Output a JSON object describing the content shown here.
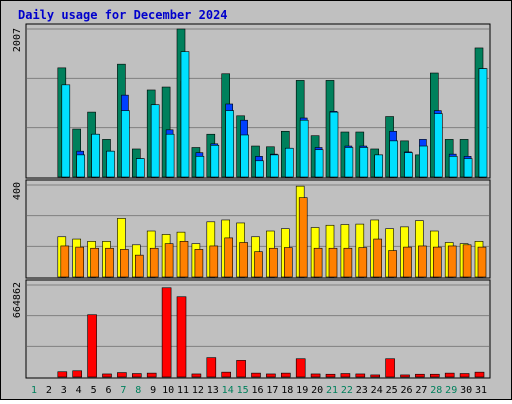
{
  "title": "Daily usage for December 2024",
  "colors": {
    "title": "#0000cc",
    "frame_bg": "#c0c0c0",
    "plot_bg": "#c0c0c0",
    "grid": "#808080",
    "hits": "#00805c",
    "files": "#0040ff",
    "pages": "#00e0ff",
    "visits": "#ffff00",
    "sites": "#ff8000",
    "kbytes": "#ff0000",
    "weekday_label": "#000000",
    "weekend_label": "#00805c"
  },
  "chart_data": [
    {
      "type": "bar",
      "panel": "hits-files-pages",
      "axis_max_label": "2007",
      "ylim": [
        0,
        2007
      ],
      "grid": true,
      "categories": [
        "1",
        "2",
        "3",
        "4",
        "5",
        "6",
        "7",
        "8",
        "9",
        "10",
        "11",
        "12",
        "13",
        "14",
        "15",
        "16",
        "17",
        "18",
        "19",
        "20",
        "21",
        "22",
        "23",
        "24",
        "25",
        "26",
        "27",
        "28",
        "29",
        "30",
        "31"
      ],
      "series": [
        {
          "values": [
            0,
            0,
            1480,
            650,
            880,
            510,
            1530,
            380,
            1180,
            1220,
            2007,
            400,
            580,
            1400,
            830,
            420,
            410,
            620,
            1310,
            560,
            1310,
            610,
            610,
            380,
            820,
            490,
            300,
            1410,
            510,
            510,
            1750
          ],
          "role": "hits"
        },
        {
          "values": [
            0,
            0,
            1180,
            350,
            580,
            350,
            1110,
            250,
            980,
            640,
            1300,
            330,
            450,
            990,
            770,
            280,
            310,
            390,
            800,
            400,
            890,
            420,
            420,
            300,
            620,
            340,
            510,
            900,
            310,
            280,
            1470
          ],
          "role": "files"
        },
        {
          "values": [
            0,
            0,
            1250,
            300,
            580,
            350,
            900,
            250,
            980,
            580,
            1700,
            280,
            430,
            900,
            570,
            220,
            300,
            390,
            770,
            370,
            880,
            400,
            400,
            300,
            490,
            330,
            420,
            860,
            280,
            250,
            1470
          ],
          "role": "pages"
        }
      ]
    },
    {
      "type": "bar",
      "panel": "visits-sites",
      "axis_max_label": "400",
      "ylim": [
        0,
        400
      ],
      "grid": true,
      "categories": [
        "1",
        "2",
        "3",
        "4",
        "5",
        "6",
        "7",
        "8",
        "9",
        "10",
        "11",
        "12",
        "13",
        "14",
        "15",
        "16",
        "17",
        "18",
        "19",
        "20",
        "21",
        "22",
        "23",
        "24",
        "25",
        "26",
        "27",
        "28",
        "29",
        "30",
        "31"
      ],
      "series": [
        {
          "values": [
            0,
            0,
            175,
            165,
            155,
            155,
            255,
            140,
            200,
            185,
            195,
            145,
            240,
            248,
            235,
            175,
            200,
            210,
            395,
            215,
            225,
            228,
            230,
            248,
            210,
            218,
            245,
            200,
            150,
            145,
            155
          ],
          "role": "visits"
        },
        {
          "values": [
            0,
            0,
            135,
            130,
            125,
            125,
            120,
            95,
            125,
            145,
            155,
            120,
            135,
            170,
            150,
            110,
            125,
            128,
            345,
            125,
            125,
            125,
            128,
            165,
            115,
            130,
            135,
            130,
            135,
            140,
            130
          ],
          "role": "sites"
        }
      ]
    },
    {
      "type": "bar",
      "panel": "kbytes",
      "axis_max_label": "664862",
      "ylim": [
        0,
        664862
      ],
      "grid": true,
      "categories": [
        "1",
        "2",
        "3",
        "4",
        "5",
        "6",
        "7",
        "8",
        "9",
        "10",
        "11",
        "12",
        "13",
        "14",
        "15",
        "16",
        "17",
        "18",
        "19",
        "20",
        "21",
        "22",
        "23",
        "24",
        "25",
        "26",
        "27",
        "28",
        "29",
        "30",
        "31"
      ],
      "series": [
        {
          "values": [
            0,
            0,
            38000,
            45000,
            450000,
            22000,
            32000,
            25000,
            28000,
            645000,
            580000,
            22000,
            140000,
            35000,
            120000,
            28000,
            22000,
            28000,
            132000,
            22000,
            20000,
            25000,
            22000,
            15000,
            132000,
            15000,
            20000,
            20000,
            28000,
            25000,
            35000
          ],
          "role": "kbytes"
        }
      ]
    }
  ],
  "x_labels": [
    {
      "day": "1",
      "weekend": true
    },
    {
      "day": "2",
      "weekend": false
    },
    {
      "day": "3",
      "weekend": false
    },
    {
      "day": "4",
      "weekend": false
    },
    {
      "day": "5",
      "weekend": false
    },
    {
      "day": "6",
      "weekend": false
    },
    {
      "day": "7",
      "weekend": true
    },
    {
      "day": "8",
      "weekend": true
    },
    {
      "day": "9",
      "weekend": false
    },
    {
      "day": "10",
      "weekend": false
    },
    {
      "day": "11",
      "weekend": false
    },
    {
      "day": "12",
      "weekend": false
    },
    {
      "day": "13",
      "weekend": false
    },
    {
      "day": "14",
      "weekend": true
    },
    {
      "day": "15",
      "weekend": true
    },
    {
      "day": "16",
      "weekend": false
    },
    {
      "day": "17",
      "weekend": false
    },
    {
      "day": "18",
      "weekend": false
    },
    {
      "day": "19",
      "weekend": false
    },
    {
      "day": "20",
      "weekend": false
    },
    {
      "day": "21",
      "weekend": true
    },
    {
      "day": "22",
      "weekend": true
    },
    {
      "day": "23",
      "weekend": false
    },
    {
      "day": "24",
      "weekend": false
    },
    {
      "day": "25",
      "weekend": false
    },
    {
      "day": "26",
      "weekend": false
    },
    {
      "day": "27",
      "weekend": false
    },
    {
      "day": "28",
      "weekend": true
    },
    {
      "day": "29",
      "weekend": true
    },
    {
      "day": "30",
      "weekend": false
    },
    {
      "day": "31",
      "weekend": false
    }
  ]
}
